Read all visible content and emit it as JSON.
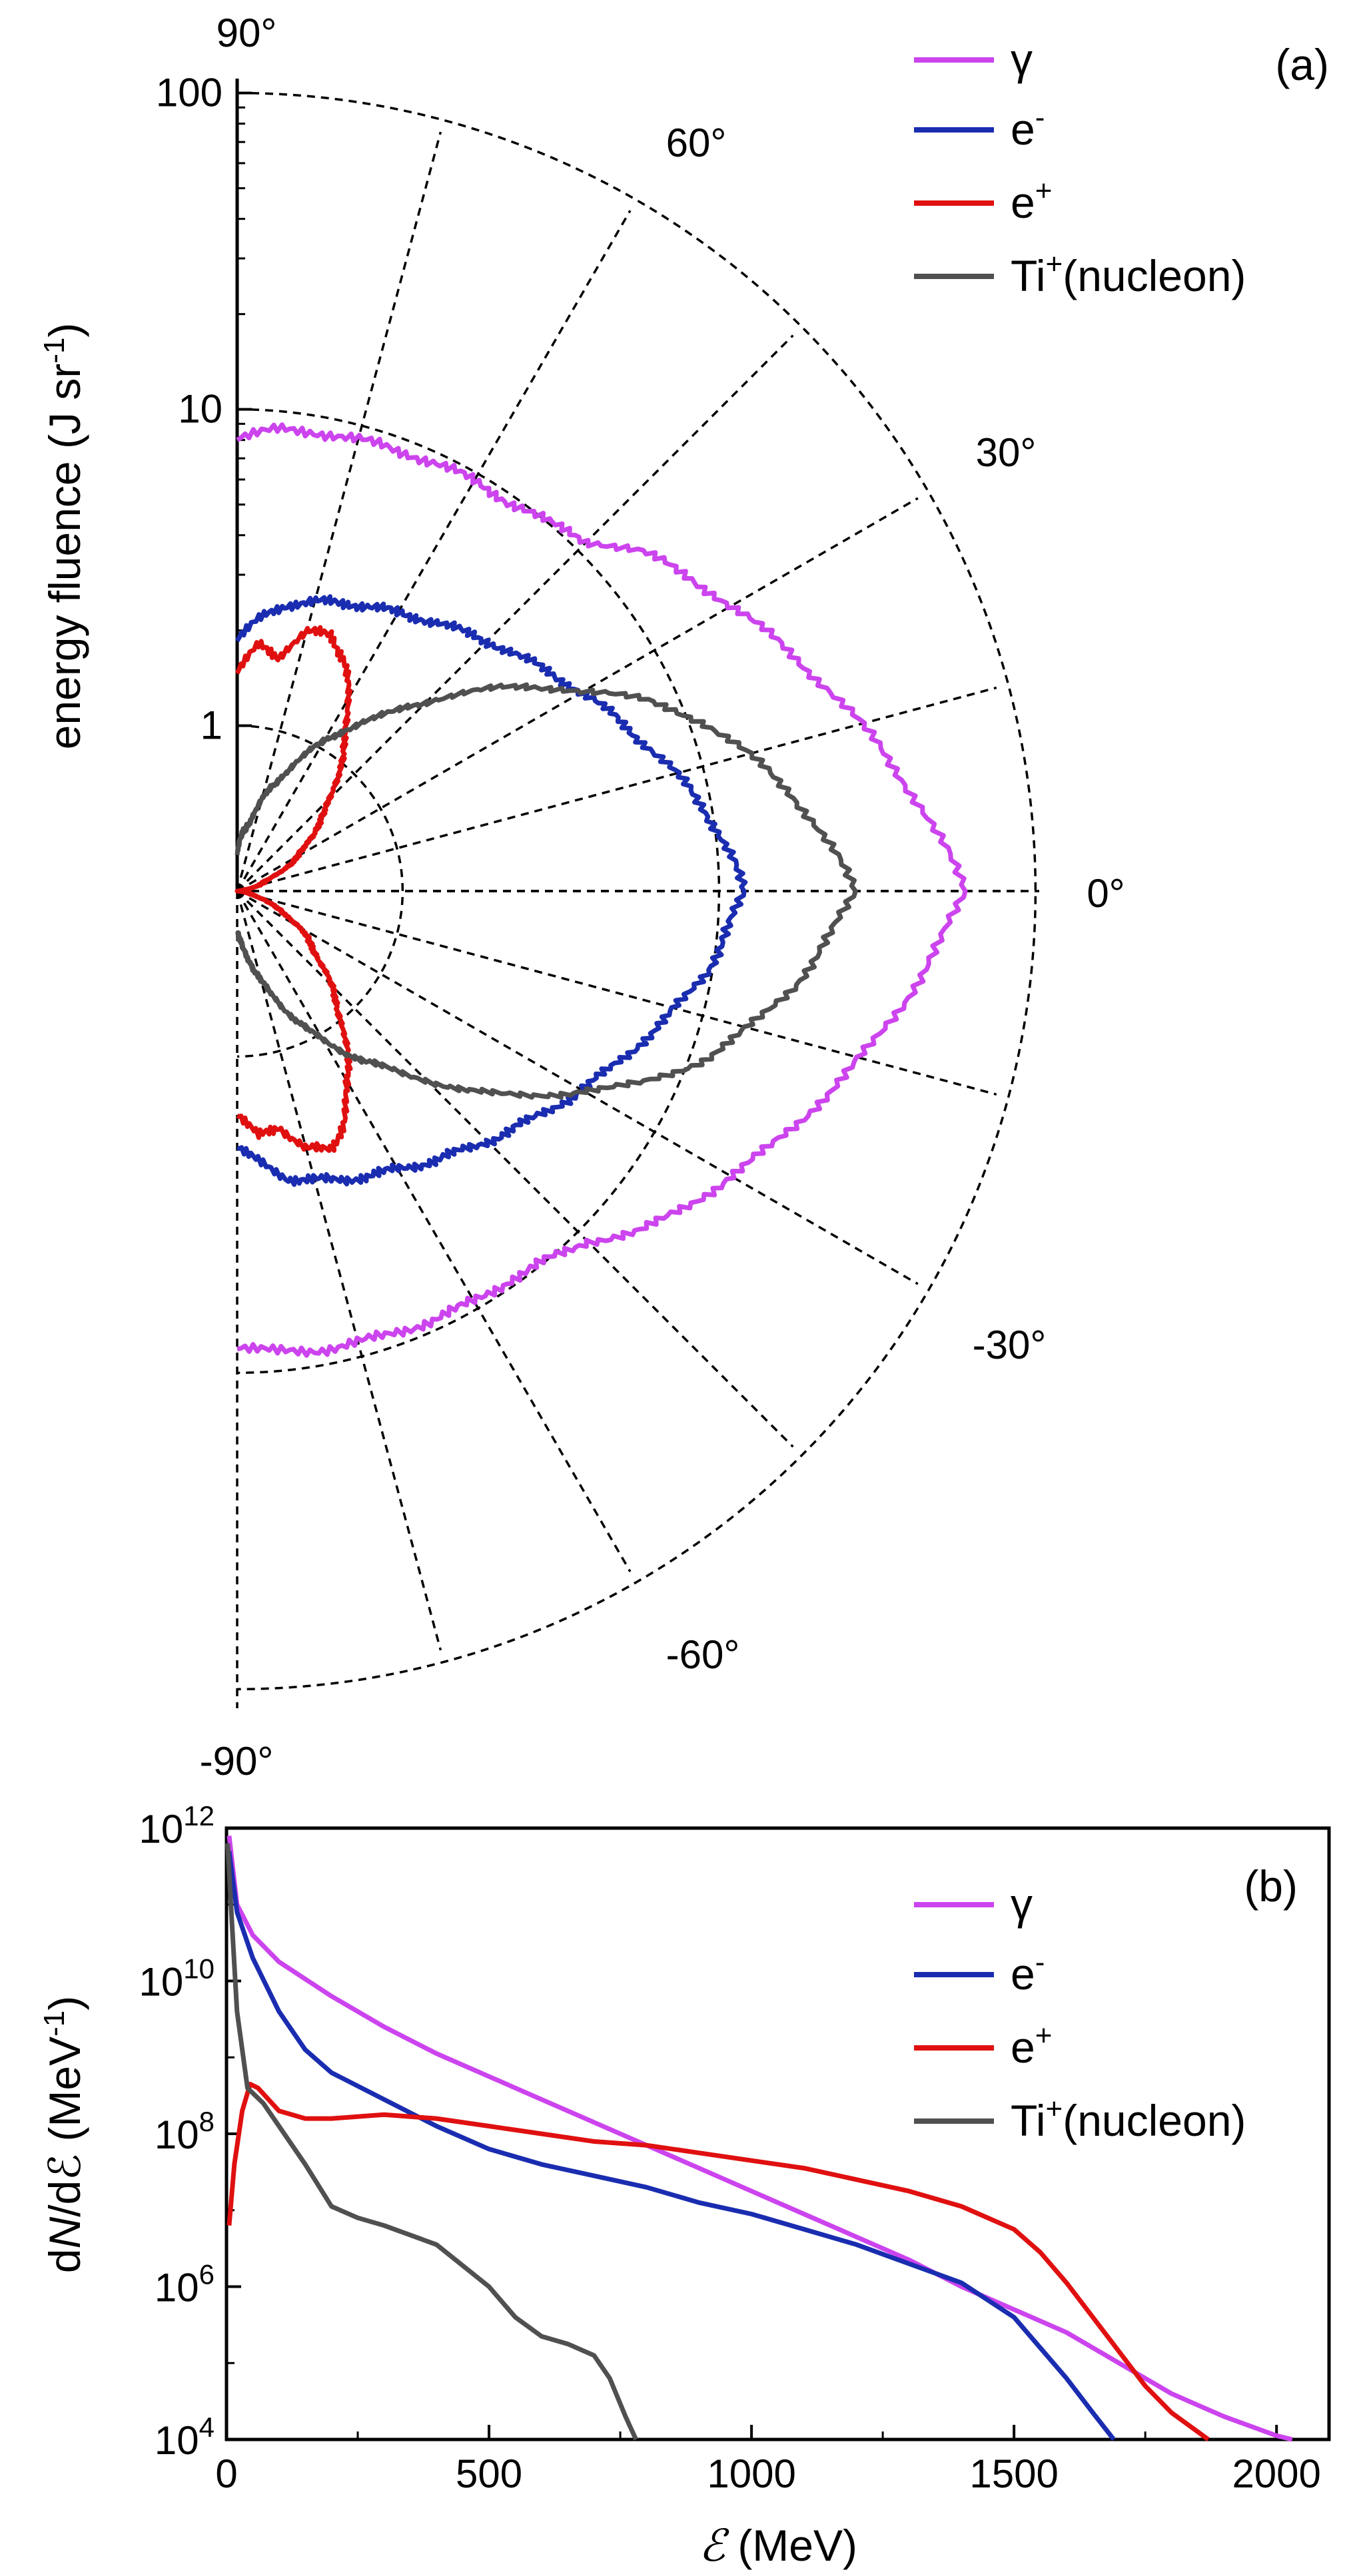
{
  "chart_data": [
    {
      "type": "polar",
      "panel_label": "(a)",
      "ylabel_main": "energy fluence (J sr",
      "ylabel_sup": "-1",
      "ylabel_end": ")",
      "radial_scale": "log",
      "radial_range": [
        0.3,
        100
      ],
      "radial_ticks": [
        {
          "value": 1,
          "label": "1"
        },
        {
          "value": 10,
          "label": "10"
        },
        {
          "value": 100,
          "label": "100"
        }
      ],
      "angle_labels": [
        {
          "angle": 90,
          "label": "90°"
        },
        {
          "angle": 60,
          "label": "60°"
        },
        {
          "angle": 30,
          "label": "30°"
        },
        {
          "angle": 0,
          "label": "0°"
        },
        {
          "angle": -30,
          "label": "-30°"
        },
        {
          "angle": -60,
          "label": "-60°"
        },
        {
          "angle": -90,
          "label": "-90°"
        }
      ],
      "spokes_deg": [
        75,
        60,
        45,
        30,
        15,
        0,
        -15,
        -30,
        -45,
        -60,
        -75
      ],
      "legend": [
        {
          "id": "gamma",
          "base": "γ",
          "sup": ""
        },
        {
          "id": "em",
          "base": "e",
          "sup": "-"
        },
        {
          "id": "ep",
          "base": "e",
          "sup": "+"
        },
        {
          "id": "ti",
          "base": "Ti",
          "sup": "+",
          "suffix": "(nucleon)"
        }
      ],
      "series": [
        {
          "id": "gamma",
          "name": "γ",
          "color": "#cc44ee",
          "angles": [
            0,
            10,
            20,
            30,
            40,
            45,
            50,
            55,
            60,
            65,
            70,
            75,
            80,
            85,
            90
          ],
          "values": [
            60,
            40,
            27,
            19,
            14,
            11,
            10,
            9.5,
            9.4,
            9.3,
            9.1,
            9.0,
            8.9,
            8.7,
            8.2
          ]
        },
        {
          "id": "em",
          "name": "e-",
          "color": "#1a2db0",
          "angles": [
            0,
            10,
            20,
            30,
            40,
            50,
            60,
            70,
            80,
            85,
            90
          ],
          "values": [
            12,
            9.5,
            7,
            5.4,
            4.3,
            3.6,
            3.1,
            2.8,
            2.5,
            2.2,
            1.9
          ]
        },
        {
          "id": "ep",
          "name": "e+",
          "color": "#e01010",
          "angles": [
            0,
            10,
            20,
            30,
            40,
            50,
            60,
            65,
            70,
            75,
            80,
            85,
            90
          ],
          "values": [
            0.3,
            0.32,
            0.38,
            0.5,
            0.65,
            0.95,
            1.5,
            1.9,
            2.2,
            2.1,
            1.7,
            1.8,
            1.5
          ]
        },
        {
          "id": "ti",
          "name": "Ti+ (nucleon)",
          "color": "#505050",
          "angles": [
            0,
            10,
            20,
            25,
            30,
            35,
            40,
            45,
            50,
            60,
            70,
            80,
            85,
            90
          ],
          "values": [
            27,
            18,
            11,
            8,
            5.5,
            4,
            2.9,
            2.1,
            1.6,
            1.05,
            0.7,
            0.5,
            0.45,
            0.4
          ]
        }
      ]
    },
    {
      "type": "line",
      "panel_label": "(b)",
      "xlabel_sym": "ℰ",
      "xlabel_rest": " (MeV)",
      "ylabel_a": "d",
      "ylabel_b": "N",
      "ylabel_c": "/dℰ (MeV",
      "ylabel_sup": "-1",
      "ylabel_end": ")",
      "xlim": [
        0,
        2100
      ],
      "yscale": "log",
      "ylim_exp": [
        4,
        12
      ],
      "xticks": [
        0,
        500,
        1000,
        1500,
        2000
      ],
      "yticks": [
        {
          "base": "10",
          "exp": "4",
          "value": 4
        },
        {
          "base": "10",
          "exp": "6",
          "value": 6
        },
        {
          "base": "10",
          "exp": "8",
          "value": 8
        },
        {
          "base": "10",
          "exp": "10",
          "value": 10
        },
        {
          "base": "10",
          "exp": "12",
          "value": 12
        }
      ],
      "legend": [
        {
          "id": "gamma",
          "base": "γ",
          "sup": ""
        },
        {
          "id": "em",
          "base": "e",
          "sup": "-"
        },
        {
          "id": "ep",
          "base": "e",
          "sup": "+"
        },
        {
          "id": "ti",
          "base": "Ti",
          "sup": "+",
          "suffix": "(nucleon)"
        }
      ],
      "series": [
        {
          "id": "gamma",
          "name": "γ",
          "color": "#cc44ee",
          "x": [
            5,
            20,
            50,
            100,
            200,
            300,
            400,
            500,
            600,
            700,
            800,
            900,
            1000,
            1100,
            1200,
            1300,
            1400,
            1500,
            1600,
            1700,
            1800,
            1900,
            2000,
            2030
          ],
          "log10y": [
            11.9,
            11.0,
            10.6,
            10.25,
            9.8,
            9.4,
            9.05,
            8.75,
            8.45,
            8.15,
            7.85,
            7.55,
            7.25,
            6.95,
            6.65,
            6.35,
            6.0,
            5.7,
            5.4,
            5.0,
            4.6,
            4.3,
            4.05,
            4.0
          ]
        },
        {
          "id": "em",
          "name": "e-",
          "color": "#1a2db0",
          "x": [
            5,
            20,
            50,
            100,
            150,
            200,
            300,
            400,
            500,
            600,
            700,
            800,
            900,
            1000,
            1100,
            1200,
            1300,
            1400,
            1500,
            1550,
            1600,
            1650,
            1690
          ],
          "log10y": [
            11.7,
            10.9,
            10.3,
            9.6,
            9.1,
            8.8,
            8.45,
            8.1,
            7.8,
            7.6,
            7.45,
            7.3,
            7.1,
            6.95,
            6.75,
            6.55,
            6.3,
            6.05,
            5.6,
            5.2,
            4.8,
            4.35,
            4.0
          ]
        },
        {
          "id": "ep",
          "name": "e+",
          "color": "#e01010",
          "x": [
            5,
            15,
            30,
            45,
            60,
            80,
            100,
            150,
            200,
            300,
            400,
            500,
            600,
            700,
            800,
            900,
            1000,
            1100,
            1200,
            1300,
            1400,
            1500,
            1550,
            1600,
            1650,
            1700,
            1750,
            1800,
            1850,
            1870
          ],
          "log10y": [
            6.8,
            7.6,
            8.3,
            8.65,
            8.6,
            8.45,
            8.3,
            8.2,
            8.2,
            8.25,
            8.2,
            8.1,
            8.0,
            7.9,
            7.85,
            7.75,
            7.65,
            7.55,
            7.4,
            7.25,
            7.05,
            6.75,
            6.45,
            6.05,
            5.6,
            5.15,
            4.7,
            4.35,
            4.1,
            4.0
          ]
        },
        {
          "id": "ti",
          "name": "Ti+ (nucleon)",
          "color": "#505050",
          "x": [
            2,
            10,
            20,
            40,
            70,
            100,
            150,
            200,
            250,
            300,
            400,
            500,
            550,
            600,
            650,
            700,
            730,
            760,
            780
          ],
          "log10y": [
            11.8,
            10.8,
            9.6,
            8.6,
            8.4,
            8.1,
            7.6,
            7.05,
            6.9,
            6.8,
            6.55,
            6.0,
            5.6,
            5.35,
            5.25,
            5.1,
            4.8,
            4.3,
            4.0
          ]
        }
      ]
    }
  ]
}
